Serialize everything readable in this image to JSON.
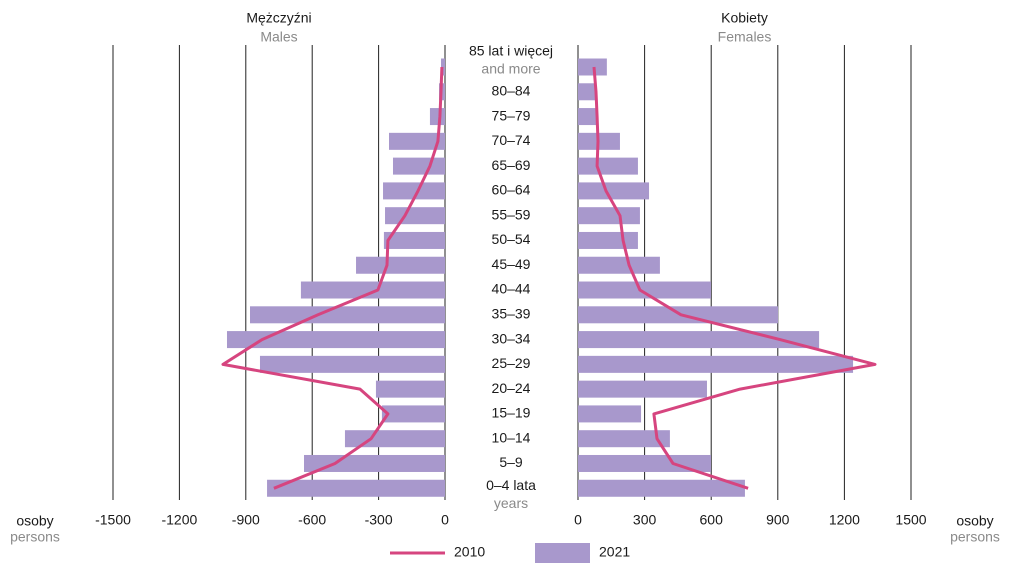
{
  "chart_data": {
    "type": "pyramid",
    "categories": [
      "85 lat i więcej",
      "80–84",
      "75–79",
      "70–74",
      "65–69",
      "60–64",
      "55–59",
      "50–54",
      "45–49",
      "40–44",
      "35–39",
      "30–34",
      "25–29",
      "20–24",
      "15–19",
      "10–14",
      "5–9",
      "0–4 lata"
    ],
    "category_second_lines": [
      "and more",
      null,
      null,
      null,
      null,
      null,
      null,
      null,
      null,
      null,
      null,
      null,
      null,
      null,
      null,
      null,
      null,
      "years"
    ],
    "unit": "osoby",
    "unit_translation": "persons",
    "panels": [
      {
        "title": "Mężczyźni",
        "subtitle": "Males",
        "xlim": [
          -1500,
          0
        ],
        "xticks": [
          -1500,
          -1200,
          -900,
          -600,
          -300,
          0
        ]
      },
      {
        "title": "Kobiety",
        "subtitle": "Females",
        "xlim": [
          0,
          1500
        ],
        "xticks": [
          0,
          300,
          600,
          900,
          1200,
          1500
        ]
      }
    ],
    "grid": true,
    "series": [
      {
        "name": "2010",
        "type": "line",
        "color": "#d6457f",
        "values": [
          [
            -14,
            -18,
            -23,
            -32,
            -68,
            -122,
            -181,
            -258,
            -262,
            -303,
            -574,
            -827,
            -1003,
            -384,
            -258,
            -334,
            -497,
            -773
          ],
          [
            72,
            81,
            86,
            90,
            86,
            126,
            189,
            203,
            230,
            279,
            464,
            910,
            1338,
            730,
            342,
            356,
            428,
            766
          ]
        ]
      },
      {
        "name": "2021",
        "type": "bar",
        "color": "#a898cc",
        "values": [
          [
            -18,
            -27,
            -68,
            -253,
            -235,
            -280,
            -271,
            -276,
            -402,
            -651,
            -881,
            -985,
            -836,
            -312,
            -285,
            -452,
            -637,
            -804
          ],
          [
            130,
            81,
            86,
            189,
            270,
            320,
            279,
            270,
            369,
            599,
            901,
            1086,
            1239,
            581,
            284,
            414,
            599,
            752
          ]
        ]
      }
    ]
  }
}
